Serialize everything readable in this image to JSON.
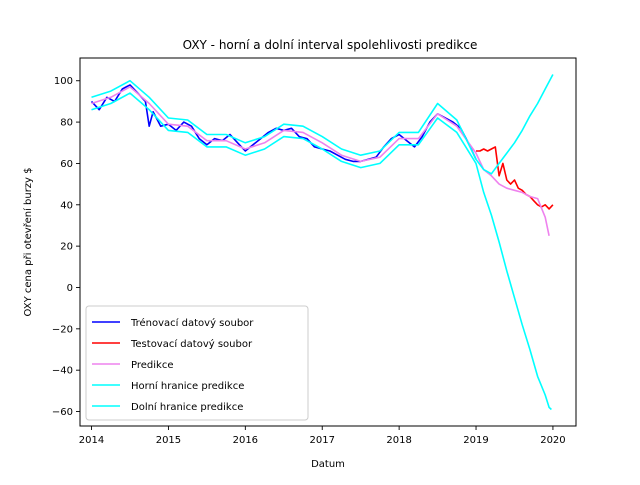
{
  "chart_data": {
    "type": "line",
    "title": "OXY - horní a dolní interval spolehlivosti predikce",
    "xlabel": "Datum",
    "ylabel": "OXY cena při otevření burzy $",
    "xlim": [
      2013.85,
      2020.3
    ],
    "ylim": [
      -67,
      111
    ],
    "x_ticks": [
      2014,
      2015,
      2016,
      2017,
      2018,
      2019,
      2020
    ],
    "x_tick_labels": [
      "2014",
      "2015",
      "2016",
      "2017",
      "2018",
      "2019",
      "2020"
    ],
    "y_ticks": [
      -60,
      -40,
      -20,
      0,
      20,
      40,
      60,
      80,
      100
    ],
    "y_tick_labels": [
      "−60",
      "−40",
      "−20",
      "0",
      "20",
      "40",
      "60",
      "80",
      "100"
    ],
    "grid": false,
    "legend_position": "lower-left",
    "series": [
      {
        "name": "Trénovací datový soubor",
        "color": "#0000ff",
        "x": [
          2014.0,
          2014.1,
          2014.2,
          2014.3,
          2014.4,
          2014.5,
          2014.6,
          2014.7,
          2014.75,
          2014.8,
          2014.9,
          2015.0,
          2015.1,
          2015.2,
          2015.3,
          2015.4,
          2015.5,
          2015.6,
          2015.7,
          2015.8,
          2015.9,
          2016.0,
          2016.1,
          2016.2,
          2016.3,
          2016.4,
          2016.5,
          2016.6,
          2016.7,
          2016.8,
          2016.9,
          2017.0,
          2017.1,
          2017.2,
          2017.3,
          2017.4,
          2017.5,
          2017.6,
          2017.7,
          2017.8,
          2017.9,
          2018.0,
          2018.1,
          2018.2,
          2018.3,
          2018.4,
          2018.5,
          2018.6,
          2018.7,
          2018.8,
          2018.9,
          2019.0
        ],
        "y": [
          90,
          86,
          92,
          90,
          96,
          98,
          94,
          90,
          78,
          85,
          78,
          79,
          76,
          80,
          78,
          72,
          69,
          72,
          71,
          74,
          70,
          66,
          69,
          72,
          75,
          77,
          76,
          77,
          73,
          72,
          68,
          67,
          66,
          64,
          62,
          61,
          61,
          62,
          63,
          68,
          72,
          74,
          71,
          68,
          73,
          80,
          84,
          82,
          80,
          77,
          70,
          62
        ]
      },
      {
        "name": "Testovací datový soubor",
        "color": "#ff0000",
        "x": [
          2019.0,
          2019.05,
          2019.1,
          2019.15,
          2019.2,
          2019.25,
          2019.3,
          2019.35,
          2019.4,
          2019.45,
          2019.5,
          2019.55,
          2019.6,
          2019.65,
          2019.7,
          2019.75,
          2019.8,
          2019.85,
          2019.9,
          2019.95,
          2020.0
        ],
        "y": [
          66,
          66,
          67,
          66,
          67,
          68,
          54,
          60,
          52,
          50,
          52,
          48,
          47,
          45,
          44,
          42,
          40,
          39,
          40,
          38,
          40
        ]
      },
      {
        "name": "Predikce",
        "color": "#ee82ee",
        "x": [
          2014.0,
          2014.25,
          2014.5,
          2014.75,
          2015.0,
          2015.25,
          2015.5,
          2015.75,
          2016.0,
          2016.25,
          2016.5,
          2016.75,
          2017.0,
          2017.25,
          2017.5,
          2017.75,
          2018.0,
          2018.25,
          2018.5,
          2018.75,
          2019.0,
          2019.1,
          2019.2,
          2019.3,
          2019.4,
          2019.5,
          2019.6,
          2019.7,
          2019.8,
          2019.9,
          2019.95
        ],
        "y": [
          89,
          92,
          97,
          89,
          79,
          78,
          71,
          71,
          67,
          70,
          76,
          75,
          70,
          64,
          61,
          63,
          72,
          72,
          84,
          78,
          65,
          57,
          54,
          50,
          48,
          47,
          46,
          44,
          43,
          34,
          25
        ]
      },
      {
        "name": "Horní hranice predikce",
        "color": "#00ffff",
        "x": [
          2014.0,
          2014.25,
          2014.5,
          2014.75,
          2015.0,
          2015.25,
          2015.5,
          2015.75,
          2016.0,
          2016.25,
          2016.5,
          2016.75,
          2017.0,
          2017.25,
          2017.5,
          2017.75,
          2018.0,
          2018.25,
          2018.5,
          2018.75,
          2019.0,
          2019.1,
          2019.2,
          2019.3,
          2019.4,
          2019.5,
          2019.6,
          2019.7,
          2019.8,
          2019.9,
          2020.0
        ],
        "y": [
          92,
          95,
          100,
          92,
          82,
          81,
          74,
          74,
          70,
          73,
          79,
          78,
          73,
          67,
          64,
          66,
          75,
          75,
          89,
          81,
          62,
          57,
          55,
          60,
          65,
          70,
          76,
          83,
          89,
          96,
          103
        ]
      },
      {
        "name": "Dolní hranice predikce",
        "color": "#00ffff",
        "x": [
          2014.0,
          2014.25,
          2014.5,
          2014.75,
          2015.0,
          2015.25,
          2015.5,
          2015.75,
          2016.0,
          2016.25,
          2016.5,
          2016.75,
          2017.0,
          2017.25,
          2017.5,
          2017.75,
          2018.0,
          2018.25,
          2018.5,
          2018.75,
          2019.0,
          2019.1,
          2019.2,
          2019.3,
          2019.4,
          2019.5,
          2019.6,
          2019.7,
          2019.8,
          2019.9,
          2019.95,
          2019.98
        ],
        "y": [
          86,
          89,
          94,
          86,
          76,
          75,
          68,
          68,
          64,
          67,
          73,
          72,
          67,
          61,
          58,
          60,
          69,
          69,
          82,
          75,
          60,
          46,
          35,
          22,
          8,
          -5,
          -18,
          -30,
          -43,
          -52,
          -58,
          -59
        ]
      }
    ]
  }
}
